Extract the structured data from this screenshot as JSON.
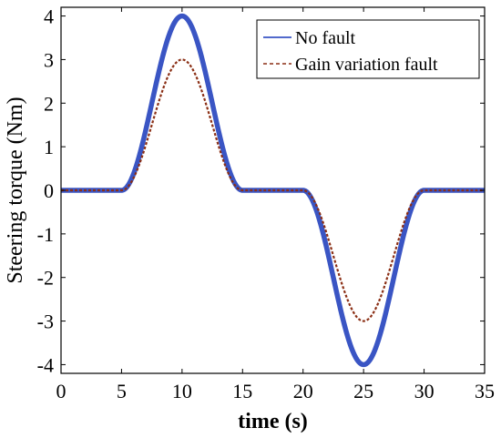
{
  "chart_data": {
    "type": "line",
    "title": "",
    "xlabel": "time (s)",
    "ylabel": "Steering torque (Nm)",
    "xlim": [
      0,
      35
    ],
    "ylim": [
      -4.2,
      4.2
    ],
    "xticks": [
      0,
      5,
      10,
      15,
      20,
      25,
      30,
      35
    ],
    "yticks": [
      -4,
      -3,
      -2,
      -1,
      0,
      1,
      2,
      3,
      4
    ],
    "grid": false,
    "legend_position": "top-right",
    "colors": {
      "series_1": "#3a55c4",
      "series_2": "#8b2f15"
    },
    "series": [
      {
        "name": "No fault",
        "style": "solid",
        "x": [
          0,
          5,
          6,
          7,
          8,
          9,
          10,
          11,
          12,
          13,
          14,
          15,
          20,
          21,
          22,
          23,
          24,
          25,
          26,
          27,
          28,
          29,
          30,
          35
        ],
        "y": [
          0,
          0,
          0.39,
          1.53,
          2.94,
          3.68,
          4.0,
          3.68,
          2.94,
          1.53,
          0.39,
          0,
          0,
          -0.39,
          -1.53,
          -2.94,
          -3.68,
          -4.0,
          -3.68,
          -2.94,
          -1.53,
          -0.39,
          0,
          0
        ]
      },
      {
        "name": "Gain variation fault",
        "style": "dashed",
        "x": [
          0,
          5,
          6,
          7,
          8,
          9,
          10,
          11,
          12,
          13,
          14,
          15,
          20,
          21,
          22,
          23,
          24,
          25,
          26,
          27,
          28,
          29,
          30,
          35
        ],
        "y": [
          0,
          0,
          0.29,
          1.15,
          2.21,
          2.76,
          3.0,
          2.76,
          2.21,
          1.15,
          0.29,
          0,
          0,
          -0.29,
          -1.15,
          -2.21,
          -2.76,
          -3.0,
          -2.76,
          -2.21,
          -1.15,
          -0.29,
          0,
          0
        ]
      }
    ]
  }
}
